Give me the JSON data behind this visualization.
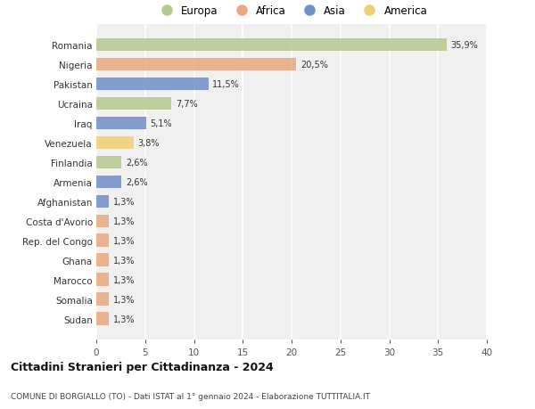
{
  "categories": [
    "Romania",
    "Nigeria",
    "Pakistan",
    "Ucraina",
    "Iraq",
    "Venezuela",
    "Finlandia",
    "Armenia",
    "Afghanistan",
    "Costa d'Avorio",
    "Rep. del Congo",
    "Ghana",
    "Marocco",
    "Somalia",
    "Sudan"
  ],
  "values": [
    35.9,
    20.5,
    11.5,
    7.7,
    5.1,
    3.8,
    2.6,
    2.6,
    1.3,
    1.3,
    1.3,
    1.3,
    1.3,
    1.3,
    1.3
  ],
  "labels": [
    "35,9%",
    "20,5%",
    "11,5%",
    "7,7%",
    "5,1%",
    "3,8%",
    "2,6%",
    "2,6%",
    "1,3%",
    "1,3%",
    "1,3%",
    "1,3%",
    "1,3%",
    "1,3%",
    "1,3%"
  ],
  "continents": [
    "Europa",
    "Africa",
    "Asia",
    "Europa",
    "Asia",
    "America",
    "Europa",
    "Asia",
    "Asia",
    "Africa",
    "Africa",
    "Africa",
    "Africa",
    "Africa",
    "Africa"
  ],
  "continent_colors": {
    "Europa": "#b5c98e",
    "Africa": "#e8a97e",
    "Asia": "#7090c8",
    "America": "#f0d070"
  },
  "legend_order": [
    "Europa",
    "Africa",
    "Asia",
    "America"
  ],
  "title": "Cittadini Stranieri per Cittadinanza - 2024",
  "subtitle": "COMUNE DI BORGIALLO (TO) - Dati ISTAT al 1° gennaio 2024 - Elaborazione TUTTITALIA.IT",
  "xlim": [
    0,
    40
  ],
  "xticks": [
    0,
    5,
    10,
    15,
    20,
    25,
    30,
    35,
    40
  ],
  "background_color": "#ffffff",
  "plot_bg_color": "#f0f0f0",
  "grid_color": "#ffffff",
  "bar_height": 0.65
}
